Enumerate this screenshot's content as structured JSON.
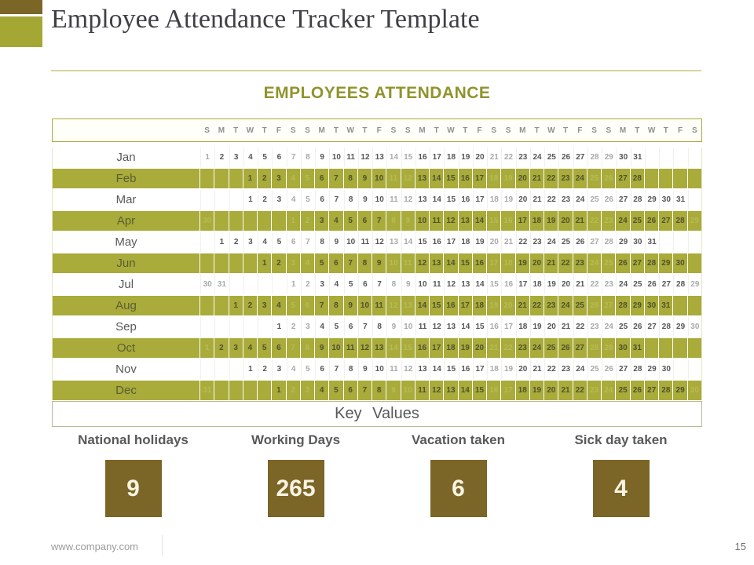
{
  "slide": {
    "title": "Employee Attendance Tracker Template",
    "website": "www.company.com",
    "page_number": "15"
  },
  "attendance": {
    "heading": "EMPLOYEES ATTENDANCE",
    "key_values_label": "Key Values"
  },
  "calendar": {
    "day_headers": [
      "S",
      "M",
      "T",
      "W",
      "T",
      "F",
      "S",
      "S",
      "M",
      "T",
      "W",
      "T",
      "F",
      "S",
      "S",
      "M",
      "T",
      "W",
      "T",
      "F",
      "S",
      "S",
      "M",
      "T",
      "W",
      "T",
      "F",
      "S",
      "S",
      "M",
      "T",
      "W",
      "T",
      "F",
      "S"
    ],
    "months": [
      {
        "name": "Jan",
        "band": "white",
        "cells": [
          "1*",
          "2",
          "3",
          "4",
          "5",
          "6",
          "7*",
          "8*",
          "9",
          "10",
          "11",
          "12",
          "13",
          "14*",
          "15*",
          "16",
          "17",
          "18",
          "19",
          "20",
          "21*",
          "22*",
          "23",
          "24",
          "25",
          "26",
          "27",
          "28*",
          "29*",
          "30",
          "31",
          "",
          "",
          "",
          ""
        ]
      },
      {
        "name": "Feb",
        "band": "olive",
        "cells": [
          "",
          "",
          "",
          "1",
          "2",
          "3",
          "4*",
          "5*",
          "6",
          "7",
          "8",
          "9",
          "10",
          "11*",
          "12*",
          "13",
          "14",
          "15",
          "16",
          "17",
          "18*",
          "19*",
          "20",
          "21",
          "22",
          "23",
          "24",
          "25*",
          "26*",
          "27",
          "28",
          "",
          "",
          "",
          ""
        ]
      },
      {
        "name": "Mar",
        "band": "white",
        "cells": [
          "",
          "",
          "",
          "1",
          "2",
          "3",
          "4*",
          "5*",
          "6",
          "7",
          "8",
          "9",
          "10",
          "11*",
          "12*",
          "13",
          "14",
          "15",
          "16",
          "17",
          "18*",
          "19*",
          "20",
          "21",
          "22",
          "23",
          "24",
          "25*",
          "26*",
          "27",
          "28",
          "29",
          "30",
          "31",
          ""
        ]
      },
      {
        "name": "Apr",
        "band": "olive",
        "cells": [
          "30*",
          "",
          "",
          "",
          "",
          "",
          "1*",
          "2*",
          "3",
          "4",
          "5",
          "6",
          "7",
          "8*",
          "9*",
          "10",
          "11",
          "12",
          "13",
          "14",
          "15*",
          "16*",
          "17",
          "18",
          "19",
          "20",
          "21",
          "22*",
          "23*",
          "24",
          "25",
          "26",
          "27",
          "28",
          "29*"
        ]
      },
      {
        "name": "May",
        "band": "white",
        "cells": [
          "",
          "1",
          "2",
          "3",
          "4",
          "5",
          "6*",
          "7*",
          "8",
          "9",
          "10",
          "11",
          "12",
          "13*",
          "14*",
          "15",
          "16",
          "17",
          "18",
          "19",
          "20*",
          "21*",
          "22",
          "23",
          "24",
          "25",
          "26",
          "27*",
          "28*",
          "29",
          "30",
          "31",
          "",
          "",
          ""
        ]
      },
      {
        "name": "Jun",
        "band": "olive",
        "cells": [
          "",
          "",
          "",
          "",
          "1",
          "2",
          "3*",
          "4*",
          "5",
          "6",
          "7",
          "8",
          "9",
          "10*",
          "11*",
          "12",
          "13",
          "14",
          "15",
          "16",
          "17*",
          "18*",
          "19",
          "20",
          "21",
          "22",
          "23",
          "24*",
          "25*",
          "26",
          "27",
          "28",
          "29",
          "30",
          ""
        ]
      },
      {
        "name": "Jul",
        "band": "white",
        "cells": [
          "30*",
          "31*",
          "",
          "",
          "",
          "",
          "1*",
          "2*",
          "3",
          "4",
          "5",
          "6",
          "7",
          "8*",
          "9*",
          "10",
          "11",
          "12",
          "13",
          "14",
          "15*",
          "16*",
          "17",
          "18",
          "19",
          "20",
          "21",
          "22*",
          "23*",
          "24",
          "25",
          "26",
          "27",
          "28",
          "29*"
        ]
      },
      {
        "name": "Aug",
        "band": "olive",
        "cells": [
          "",
          "",
          "1",
          "2",
          "3",
          "4",
          "5*",
          "6*",
          "7",
          "8",
          "9",
          "10",
          "11",
          "12*",
          "13*",
          "14",
          "15",
          "16",
          "17",
          "18",
          "19*",
          "20*",
          "21",
          "22",
          "23",
          "24",
          "25",
          "26*",
          "27*",
          "28",
          "29",
          "30",
          "31",
          "",
          ""
        ]
      },
      {
        "name": "Sep",
        "band": "white",
        "cells": [
          "",
          "",
          "",
          "",
          "",
          "1",
          "2*",
          "3*",
          "4",
          "5",
          "6",
          "7",
          "8",
          "9*",
          "10*",
          "11",
          "12",
          "13",
          "14",
          "15",
          "16*",
          "17*",
          "18",
          "19",
          "20",
          "21",
          "22",
          "23*",
          "24*",
          "25",
          "26",
          "27",
          "28",
          "29",
          "30*"
        ]
      },
      {
        "name": "Oct",
        "band": "olive",
        "cells": [
          "1*",
          "2",
          "3",
          "4",
          "5",
          "6",
          "7*",
          "8*",
          "9",
          "10",
          "11",
          "12",
          "13",
          "14*",
          "15*",
          "16",
          "17",
          "18",
          "19",
          "20",
          "21*",
          "22*",
          "23",
          "24",
          "25",
          "26",
          "27",
          "28*",
          "29*",
          "30",
          "31",
          "",
          "",
          "",
          ""
        ]
      },
      {
        "name": "Nov",
        "band": "white",
        "cells": [
          "",
          "",
          "",
          "1",
          "2",
          "3",
          "4*",
          "5*",
          "6",
          "7",
          "8",
          "9",
          "10",
          "11*",
          "12*",
          "13",
          "14",
          "15",
          "16",
          "17",
          "18*",
          "19*",
          "20",
          "21",
          "22",
          "23",
          "24",
          "25*",
          "26*",
          "27",
          "28",
          "29",
          "30",
          "",
          ""
        ]
      },
      {
        "name": "Dec",
        "band": "olive",
        "cells": [
          "31*",
          "",
          "",
          "",
          "",
          "1",
          "2*",
          "3*",
          "4",
          "5",
          "6",
          "7",
          "8",
          "9*",
          "10*",
          "11",
          "12",
          "13",
          "14",
          "15",
          "16*",
          "17*",
          "18",
          "19",
          "20",
          "21",
          "22",
          "23*",
          "24*",
          "25",
          "26",
          "27",
          "28",
          "29",
          "30*"
        ]
      }
    ]
  },
  "stats": [
    {
      "label": "National holidays",
      "value": "9"
    },
    {
      "label": "Working Days",
      "value": "265"
    },
    {
      "label": "Vacation taken",
      "value": "6"
    },
    {
      "label": "Sick day taken",
      "value": "4"
    }
  ],
  "colors": {
    "olive": "#a9ab3a",
    "brown": "#7b6527",
    "heading_text": "#90932c",
    "body_text": "#595959"
  }
}
